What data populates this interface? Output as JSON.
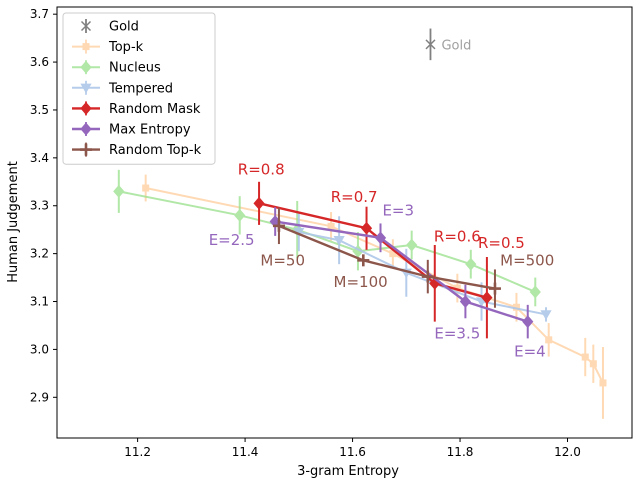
{
  "chart_data": {
    "type": "line",
    "xlabel": "3-gram Entropy",
    "ylabel": "Human Judgement",
    "xlim": [
      11.05,
      12.12
    ],
    "ylim": [
      2.815,
      3.715
    ],
    "xticks": [
      11.2,
      11.4,
      11.6,
      11.8,
      12.0
    ],
    "xtick_labels": [
      "11.2",
      "11.4",
      "11.6",
      "11.8",
      "12.0"
    ],
    "yticks": [
      2.9,
      3.0,
      3.1,
      3.2,
      3.3,
      3.4,
      3.5,
      3.6,
      3.7
    ],
    "ytick_labels": [
      "2.9",
      "3.0",
      "3.1",
      "3.2",
      "3.3",
      "3.4",
      "3.5",
      "3.6",
      "3.7"
    ],
    "legend_position": "upper-left",
    "grid": false,
    "gold": {
      "name": "Gold",
      "label": "Gold",
      "x": 11.745,
      "y": 3.637,
      "err": 0.033,
      "color": "#808080"
    },
    "series": [
      {
        "name": "Top-k",
        "color": "#ffbb78",
        "marker": "square",
        "opacity": 0.55,
        "width": 2,
        "points": [
          {
            "x": 11.215,
            "y": 3.337,
            "e": 0.028
          },
          {
            "x": 11.56,
            "y": 3.257,
            "e": 0.03
          },
          {
            "x": 11.675,
            "y": 3.2,
            "e": 0.03
          },
          {
            "x": 11.795,
            "y": 3.128,
            "e": 0.03
          },
          {
            "x": 11.905,
            "y": 3.088,
            "e": 0.03
          },
          {
            "x": 11.965,
            "y": 3.02,
            "e": 0.035
          },
          {
            "x": 12.033,
            "y": 2.984,
            "e": 0.04
          },
          {
            "x": 12.048,
            "y": 2.97,
            "e": 0.04
          },
          {
            "x": 12.066,
            "y": 2.93,
            "e": 0.075
          }
        ]
      },
      {
        "name": "Nucleus",
        "color": "#98df8a",
        "marker": "diamond",
        "opacity": 0.75,
        "width": 2,
        "points": [
          {
            "x": 11.165,
            "y": 3.33,
            "e": 0.045
          },
          {
            "x": 11.39,
            "y": 3.28,
            "e": 0.04
          },
          {
            "x": 11.497,
            "y": 3.25,
            "e": 0.06
          },
          {
            "x": 11.61,
            "y": 3.205,
            "e": 0.04
          },
          {
            "x": 11.71,
            "y": 3.218,
            "e": 0.03
          },
          {
            "x": 11.82,
            "y": 3.178,
            "e": 0.03
          },
          {
            "x": 11.94,
            "y": 3.12,
            "e": 0.03
          }
        ]
      },
      {
        "name": "Tempered",
        "color": "#aec7e8",
        "marker": "triangle-down",
        "opacity": 0.9,
        "width": 2,
        "points": [
          {
            "x": 11.5,
            "y": 3.245,
            "e": 0.04
          },
          {
            "x": 11.575,
            "y": 3.228,
            "e": 0.05
          },
          {
            "x": 11.7,
            "y": 3.16,
            "e": 0.05
          },
          {
            "x": 11.84,
            "y": 3.1,
            "e": 0.04
          },
          {
            "x": 11.96,
            "y": 3.073,
            "e": 0.015
          }
        ]
      },
      {
        "name": "Random Mask",
        "color": "#d62728",
        "marker": "diamond",
        "opacity": 1,
        "width": 2.4,
        "points": [
          {
            "x": 11.426,
            "y": 3.305,
            "e": 0.045
          },
          {
            "x": 11.626,
            "y": 3.253,
            "e": 0.045
          },
          {
            "x": 11.753,
            "y": 3.138,
            "e": 0.08
          },
          {
            "x": 11.85,
            "y": 3.108,
            "e": 0.085
          }
        ]
      },
      {
        "name": "Max Entropy",
        "color": "#9467bd",
        "marker": "diamond",
        "opacity": 1,
        "width": 2.4,
        "points": [
          {
            "x": 11.456,
            "y": 3.267,
            "e": 0.03
          },
          {
            "x": 11.652,
            "y": 3.233,
            "e": 0.03
          },
          {
            "x": 11.81,
            "y": 3.1,
            "e": 0.035
          },
          {
            "x": 11.926,
            "y": 3.058,
            "e": 0.035
          }
        ]
      },
      {
        "name": "Random Top-k",
        "color": "#8c564b",
        "marker": "plus",
        "opacity": 1,
        "width": 2.4,
        "points": [
          {
            "x": 11.463,
            "y": 3.258,
            "e": 0.038
          },
          {
            "x": 11.62,
            "y": 3.186,
            "e": 0.01
          },
          {
            "x": 11.74,
            "y": 3.152,
            "e": 0.035
          },
          {
            "x": 11.865,
            "y": 3.127,
            "e": 0.04
          }
        ]
      }
    ],
    "annotations": [
      {
        "text": "R=0.8",
        "x": 11.43,
        "y": 3.365,
        "color": "#d62728",
        "anchor": "middle"
      },
      {
        "text": "R=0.7",
        "x": 11.603,
        "y": 3.308,
        "color": "#d62728",
        "anchor": "middle"
      },
      {
        "text": "R=0.6",
        "x": 11.795,
        "y": 3.225,
        "color": "#d62728",
        "anchor": "middle"
      },
      {
        "text": "R=0.5",
        "x": 11.877,
        "y": 3.212,
        "color": "#d62728",
        "anchor": "middle"
      },
      {
        "text": "E=3",
        "x": 11.685,
        "y": 3.28,
        "color": "#9467bd",
        "anchor": "middle"
      },
      {
        "text": "E=2.5",
        "x": 11.375,
        "y": 3.218,
        "color": "#9467bd",
        "anchor": "middle"
      },
      {
        "text": "E=3.5",
        "x": 11.795,
        "y": 3.023,
        "color": "#9467bd",
        "anchor": "middle"
      },
      {
        "text": "E=4",
        "x": 11.93,
        "y": 2.985,
        "color": "#9467bd",
        "anchor": "middle"
      },
      {
        "text": "M=50",
        "x": 11.47,
        "y": 3.175,
        "color": "#8c564b",
        "anchor": "middle"
      },
      {
        "text": "M=100",
        "x": 11.615,
        "y": 3.13,
        "color": "#8c564b",
        "anchor": "middle"
      },
      {
        "text": "M=500",
        "x": 11.925,
        "y": 3.175,
        "color": "#8c564b",
        "anchor": "middle"
      }
    ]
  }
}
